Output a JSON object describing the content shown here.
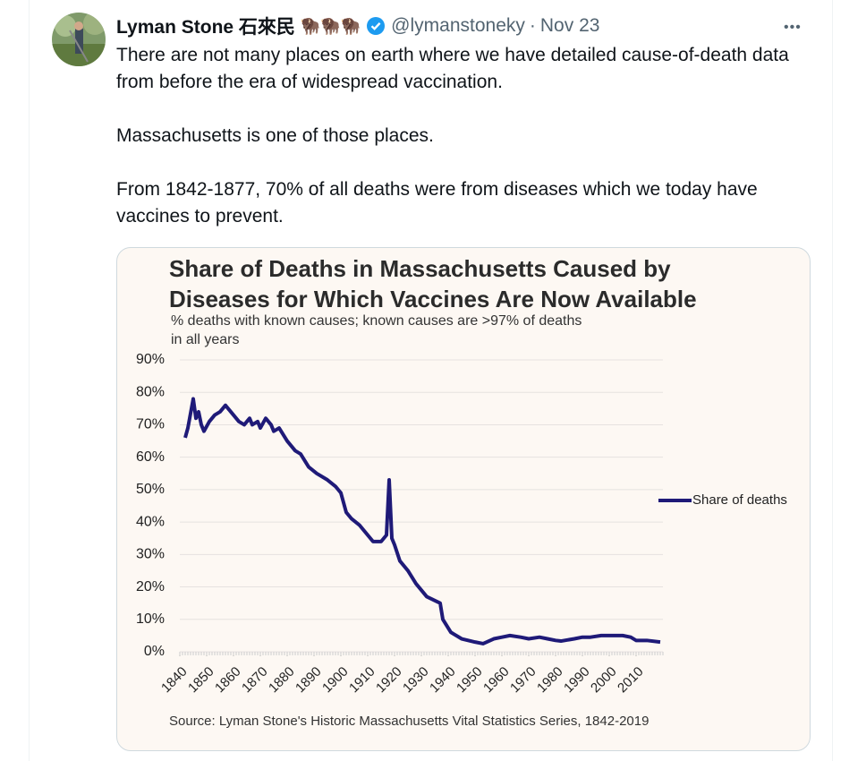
{
  "tweet": {
    "name": "Lyman Stone 石來民",
    "name_emoji": "🦬🦬🦬",
    "handle": "@lymanstoneky",
    "separator": "·",
    "date": "Nov 23",
    "more": "•••",
    "paragraphs": [
      "There are not many places on earth where we have detailed cause-of-death data from before the era of widespread vaccination.",
      "Massachusetts is one of those places.",
      "From 1842-1877, 70% of all deaths were from diseases which we today have vaccines to prevent."
    ]
  },
  "chart_data": {
    "type": "line",
    "title": "Share of Deaths in Massachusetts Caused by Diseases for Which Vaccines Are Now Available",
    "subtitle": "% deaths with known causes; known causes are >97% of deaths in all years",
    "source": "Source: Lyman Stone's Historic Massachusetts Vital Statistics Series, 1842-2019",
    "x": [
      1842,
      1843,
      1845,
      1846,
      1847,
      1848,
      1849,
      1851,
      1853,
      1855,
      1857,
      1859,
      1862,
      1864,
      1866,
      1867,
      1869,
      1870,
      1872,
      1874,
      1875,
      1877,
      1880,
      1883,
      1885,
      1888,
      1891,
      1895,
      1898,
      1900,
      1902,
      1904,
      1907,
      1910,
      1912,
      1915,
      1917,
      1918,
      1919,
      1920,
      1922,
      1925,
      1928,
      1932,
      1937,
      1938,
      1941,
      1945,
      1950,
      1953,
      1957,
      1960,
      1963,
      1967,
      1970,
      1974,
      1977,
      1980,
      1982,
      1987,
      1990,
      1993,
      1997,
      2000,
      2005,
      2008,
      2010,
      2014,
      2019
    ],
    "series": [
      {
        "name": "Share of deaths",
        "color": "#1f1a78",
        "values": [
          66,
          69,
          78,
          72,
          74,
          70,
          68,
          71,
          73,
          74,
          76,
          74,
          71,
          70,
          72,
          70,
          71,
          69,
          72,
          70,
          68,
          69,
          65,
          62,
          61,
          57,
          55,
          53,
          51,
          49,
          43,
          41,
          39,
          36,
          34,
          34,
          36,
          53,
          35,
          33,
          28,
          25,
          21,
          17,
          15,
          10,
          6,
          4,
          3,
          2.5,
          4,
          4.5,
          5,
          4.5,
          4,
          4.5,
          4,
          3.5,
          3.3,
          4,
          4.5,
          4.5,
          5,
          5,
          5,
          4.5,
          3.5,
          3.5,
          3
        ]
      }
    ],
    "xlim": [
      1840,
      2020
    ],
    "xticks": [
      1840,
      1850,
      1860,
      1870,
      1880,
      1890,
      1900,
      1910,
      1920,
      1930,
      1940,
      1950,
      1960,
      1970,
      1980,
      1990,
      2000,
      2010
    ],
    "ylim": [
      0,
      90
    ],
    "yticks": [
      {
        "value": 0,
        "label": "0%"
      },
      {
        "value": 10,
        "label": "10%"
      },
      {
        "value": 20,
        "label": "20%"
      },
      {
        "value": 30,
        "label": "30%"
      },
      {
        "value": 40,
        "label": "40%"
      },
      {
        "value": 50,
        "label": "50%"
      },
      {
        "value": 60,
        "label": "60%"
      },
      {
        "value": 70,
        "label": "70%"
      },
      {
        "value": 80,
        "label": "80%"
      },
      {
        "value": 90,
        "label": "90%"
      }
    ],
    "grid": true,
    "legend": "right"
  }
}
